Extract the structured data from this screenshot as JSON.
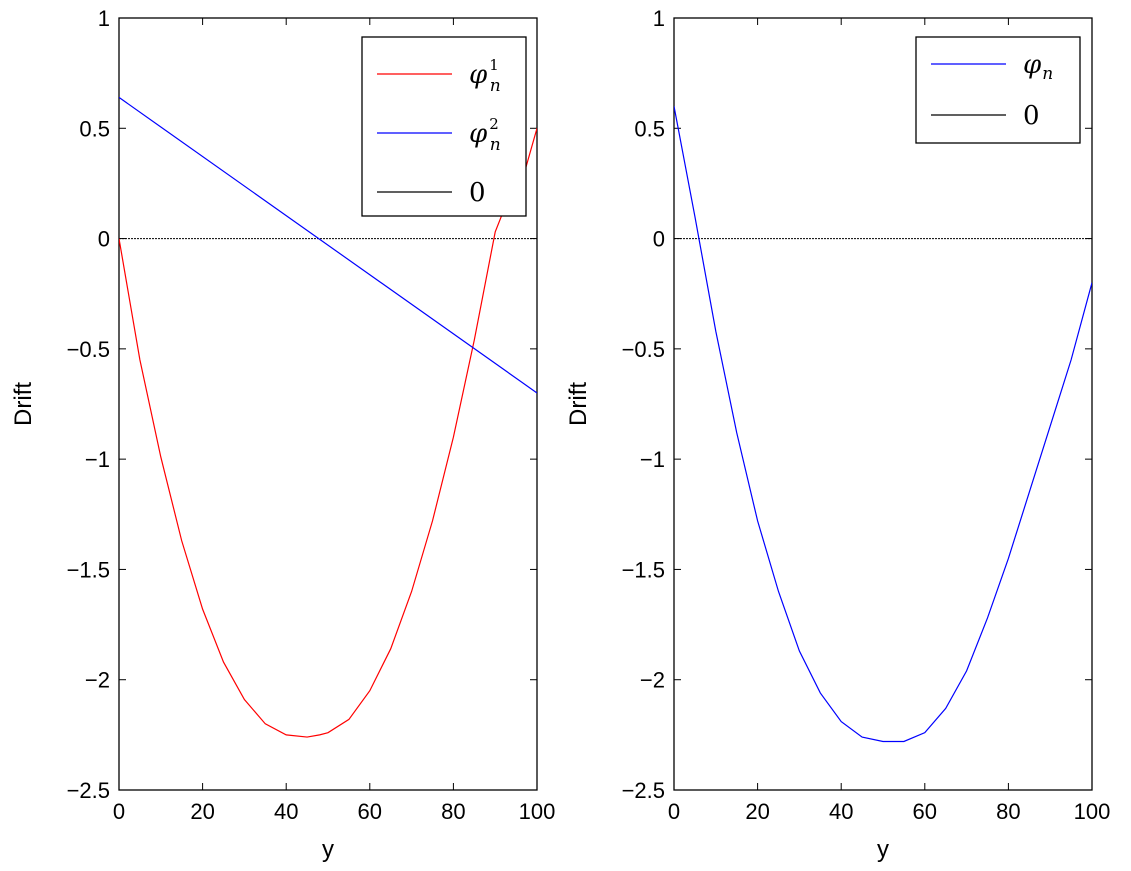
{
  "chart_data": [
    {
      "type": "line",
      "title": "",
      "xlabel": "y",
      "ylabel": "Drift",
      "xlim": [
        0,
        100
      ],
      "ylim": [
        -2.5,
        1
      ],
      "xticks": [
        "0",
        "20",
        "40",
        "60",
        "80",
        "100"
      ],
      "yticks": [
        "1",
        "0.5",
        "0",
        "−0.5",
        "−1",
        "−1.5",
        "−2",
        "−2.5"
      ],
      "grid": false,
      "legend_position": "top-right",
      "series": [
        {
          "name": "φn¹",
          "legend_base": "φ",
          "legend_sub": "n",
          "legend_sup": "1",
          "color": "#ff0000",
          "x": [
            0,
            5,
            10,
            15,
            20,
            25,
            30,
            35,
            40,
            45,
            48,
            50,
            55,
            60,
            65,
            70,
            75,
            80,
            85,
            90,
            95,
            97,
            100
          ],
          "y": [
            0,
            -0.55,
            -0.99,
            -1.37,
            -1.68,
            -1.92,
            -2.09,
            -2.2,
            -2.25,
            -2.26,
            -2.25,
            -2.24,
            -2.18,
            -2.05,
            -1.86,
            -1.6,
            -1.28,
            -0.9,
            -0.46,
            0.03,
            0.27,
            0.3,
            0.5
          ]
        },
        {
          "name": "φn²",
          "legend_base": "φ",
          "legend_sub": "n",
          "legend_sup": "2",
          "color": "#0000ff",
          "x": [
            0,
            100
          ],
          "y": [
            0.64,
            -0.7
          ]
        },
        {
          "name": "0",
          "legend_base": "0",
          "legend_sub": "",
          "legend_sup": "",
          "color": "#000000",
          "x": [
            0,
            100
          ],
          "y": [
            0,
            0
          ]
        }
      ]
    },
    {
      "type": "line",
      "title": "",
      "xlabel": "y",
      "ylabel": "Drift",
      "xlim": [
        0,
        100
      ],
      "ylim": [
        -2.5,
        1
      ],
      "xticks": [
        "0",
        "20",
        "40",
        "60",
        "80",
        "100"
      ],
      "yticks": [
        "1",
        "0.5",
        "0",
        "−0.5",
        "−1",
        "−1.5",
        "−2",
        "−2.5"
      ],
      "grid": false,
      "legend_position": "top-right",
      "series": [
        {
          "name": "φn",
          "legend_base": "φ",
          "legend_sub": "n",
          "legend_sup": "",
          "color": "#0000ff",
          "x": [
            0,
            5,
            10,
            15,
            20,
            25,
            30,
            35,
            40,
            45,
            50,
            55,
            60,
            65,
            70,
            75,
            80,
            85,
            90,
            95,
            100
          ],
          "y": [
            0.6,
            0.1,
            -0.42,
            -0.88,
            -1.28,
            -1.6,
            -1.87,
            -2.06,
            -2.19,
            -2.26,
            -2.28,
            -2.28,
            -2.24,
            -2.13,
            -1.96,
            -1.72,
            -1.45,
            -1.15,
            -0.85,
            -0.55,
            -0.2
          ]
        },
        {
          "name": "0",
          "legend_base": "0",
          "legend_sub": "",
          "legend_sup": "",
          "color": "#000000",
          "x": [
            0,
            100
          ],
          "y": [
            0,
            0
          ]
        }
      ]
    }
  ]
}
